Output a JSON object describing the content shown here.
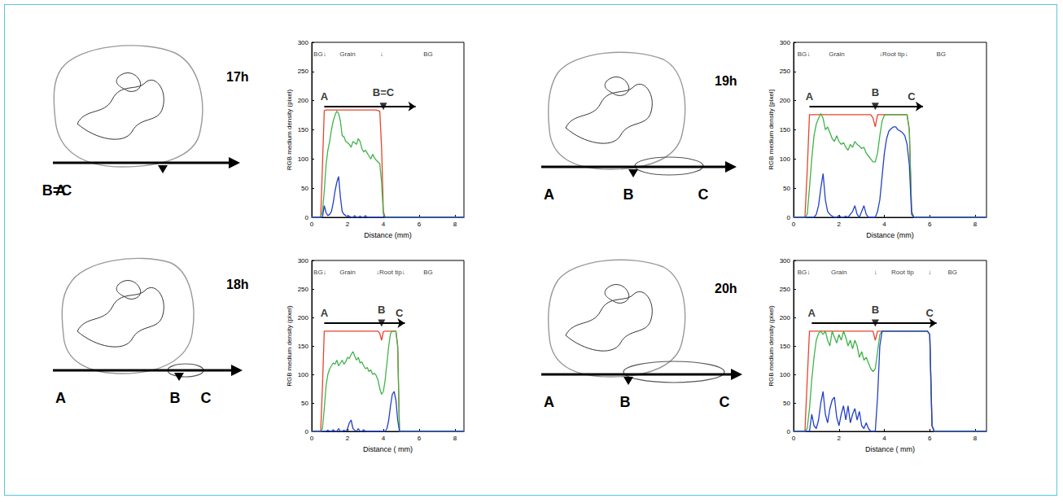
{
  "chart_data": [
    {
      "type": "line",
      "x_label": "Distance (mm)",
      "y_label": "RGB medium density (pixel)",
      "xlim": [
        0,
        8.5
      ],
      "xticks": [
        0,
        2,
        4,
        6,
        8
      ],
      "ylim": [
        0,
        300
      ],
      "yticks": [
        0,
        50,
        100,
        150,
        200,
        250,
        300
      ],
      "grid": false,
      "x": [
        0,
        0.5,
        0.6,
        0.7,
        0.8,
        0.9,
        1.0,
        1.1,
        1.2,
        1.3,
        1.4,
        1.5,
        1.6,
        1.7,
        1.8,
        1.9,
        2.0,
        2.1,
        2.2,
        2.3,
        2.4,
        2.5,
        2.6,
        2.7,
        2.8,
        2.9,
        3.0,
        3.1,
        3.2,
        3.3,
        3.4,
        3.5,
        3.6,
        3.7,
        3.8,
        3.9,
        4.0,
        4.1,
        8.5
      ],
      "series": [
        {
          "color": "#e8432d",
          "values": [
            0,
            0,
            90,
            183,
            184,
            184,
            184,
            184,
            184,
            184,
            184,
            184,
            184,
            184,
            184,
            184,
            184,
            184,
            184,
            184,
            184,
            184,
            184,
            184,
            184,
            184,
            184,
            184,
            184,
            184,
            184,
            184,
            184,
            183,
            182,
            120,
            10,
            0,
            0
          ]
        },
        {
          "color": "#3fb449",
          "values": [
            0,
            0,
            10,
            45,
            90,
            115,
            130,
            150,
            165,
            175,
            182,
            178,
            165,
            140,
            138,
            130,
            128,
            125,
            120,
            130,
            128,
            125,
            135,
            130,
            118,
            112,
            115,
            110,
            105,
            100,
            108,
            102,
            98,
            95,
            92,
            60,
            5,
            0,
            0
          ]
        },
        {
          "color": "#2340c8",
          "values": [
            0,
            0,
            0,
            20,
            8,
            3,
            5,
            10,
            25,
            45,
            60,
            70,
            35,
            10,
            5,
            3,
            0,
            2,
            0,
            0,
            3,
            0,
            0,
            2,
            0,
            0,
            3,
            0,
            0,
            0,
            0,
            0,
            0,
            0,
            0,
            0,
            0,
            0,
            0
          ]
        }
      ],
      "annotations": [
        {
          "text": "BG↓",
          "x": 0.45,
          "y": 280
        },
        {
          "text": "Grain",
          "x": 2.0,
          "y": 280
        },
        {
          "text": "↓",
          "x": 3.9,
          "y": 280
        },
        {
          "text": "BG",
          "x": 6.5,
          "y": 280
        }
      ],
      "arrow": {
        "y": 190,
        "end": 5.8,
        "points": [
          {
            "label": "A",
            "x": 0.7
          },
          {
            "label": "B=C",
            "x": 4.0,
            "marker": "triangle"
          }
        ]
      }
    },
    {
      "type": "line",
      "x_label": "Distance ( mm)",
      "y_label": "RGB medium density (pixel)",
      "xlim": [
        0,
        8.5
      ],
      "xticks": [
        0,
        2,
        4,
        6,
        8
      ],
      "ylim": [
        0,
        300
      ],
      "yticks": [
        0,
        50,
        100,
        150,
        200,
        250,
        300
      ],
      "grid": false,
      "x": [
        0,
        0.5,
        0.6,
        0.7,
        0.8,
        0.9,
        1.0,
        1.1,
        1.2,
        1.3,
        1.4,
        1.5,
        1.6,
        1.7,
        1.8,
        1.9,
        2.0,
        2.1,
        2.2,
        2.3,
        2.4,
        2.5,
        2.6,
        2.7,
        2.8,
        2.9,
        3.0,
        3.1,
        3.2,
        3.3,
        3.4,
        3.5,
        3.6,
        3.7,
        3.8,
        3.9,
        4.0,
        4.1,
        4.2,
        4.3,
        4.4,
        4.5,
        4.6,
        4.7,
        4.8,
        4.9,
        8.5
      ],
      "series": [
        {
          "color": "#e8432d",
          "values": [
            0,
            0,
            80,
            176,
            176,
            176,
            176,
            176,
            176,
            176,
            176,
            176,
            176,
            176,
            176,
            176,
            176,
            176,
            176,
            176,
            176,
            176,
            176,
            176,
            176,
            176,
            176,
            176,
            176,
            176,
            176,
            176,
            176,
            176,
            172,
            160,
            175,
            176,
            176,
            176,
            176,
            176,
            176,
            176,
            150,
            0,
            0
          ]
        },
        {
          "color": "#3fb449",
          "values": [
            0,
            0,
            5,
            40,
            80,
            100,
            110,
            115,
            120,
            118,
            125,
            115,
            120,
            125,
            118,
            122,
            130,
            128,
            135,
            140,
            132,
            125,
            130,
            120,
            122,
            115,
            110,
            112,
            105,
            108,
            100,
            102,
            98,
            90,
            75,
            65,
            70,
            90,
            120,
            150,
            172,
            176,
            176,
            176,
            150,
            0,
            0
          ]
        },
        {
          "color": "#2340c8",
          "values": [
            0,
            0,
            0,
            0,
            0,
            2,
            0,
            0,
            3,
            0,
            0,
            5,
            0,
            0,
            2,
            0,
            5,
            15,
            20,
            5,
            2,
            0,
            5,
            0,
            0,
            3,
            0,
            0,
            0,
            0,
            0,
            0,
            0,
            0,
            0,
            0,
            0,
            0,
            5,
            20,
            45,
            65,
            70,
            55,
            20,
            0,
            0
          ]
        }
      ],
      "annotations": [
        {
          "text": "BG↓",
          "x": 0.45,
          "y": 280
        },
        {
          "text": "Grain",
          "x": 2.0,
          "y": 280
        },
        {
          "text": "↓Root tip↓",
          "x": 4.4,
          "y": 280
        },
        {
          "text": "BG",
          "x": 6.5,
          "y": 280
        }
      ],
      "arrow": {
        "y": 190,
        "end": 5.2,
        "points": [
          {
            "label": "A",
            "x": 0.7
          },
          {
            "label": "B",
            "x": 3.9,
            "marker": "triangle"
          },
          {
            "label": "C",
            "x": 4.9
          }
        ]
      }
    },
    {
      "type": "line",
      "x_label": "Distance (mm)",
      "y_label": "RGB medium density [pixel]",
      "xlim": [
        0,
        8.5
      ],
      "xticks": [
        0,
        2,
        4,
        6,
        8
      ],
      "ylim": [
        0,
        300
      ],
      "yticks": [
        0,
        50,
        100,
        150,
        200,
        250,
        300
      ],
      "grid": false,
      "x": [
        0,
        0.5,
        0.6,
        0.7,
        0.8,
        0.9,
        1.0,
        1.1,
        1.2,
        1.3,
        1.4,
        1.5,
        1.6,
        1.7,
        1.8,
        1.9,
        2.0,
        2.1,
        2.2,
        2.3,
        2.4,
        2.5,
        2.6,
        2.7,
        2.8,
        2.9,
        3.0,
        3.1,
        3.2,
        3.3,
        3.4,
        3.5,
        3.6,
        3.7,
        3.8,
        3.9,
        4.0,
        4.1,
        4.2,
        4.3,
        4.4,
        4.5,
        4.6,
        4.7,
        4.8,
        4.9,
        5.0,
        5.1,
        5.2,
        5.3,
        8.5
      ],
      "series": [
        {
          "color": "#e8432d",
          "values": [
            0,
            0,
            80,
            176,
            176,
            176,
            176,
            176,
            176,
            176,
            176,
            176,
            176,
            176,
            176,
            176,
            176,
            176,
            176,
            176,
            176,
            176,
            176,
            176,
            176,
            176,
            176,
            176,
            176,
            176,
            176,
            170,
            155,
            176,
            176,
            176,
            176,
            176,
            176,
            176,
            176,
            176,
            176,
            176,
            176,
            176,
            176,
            150,
            10,
            0,
            0
          ]
        },
        {
          "color": "#3fb449",
          "values": [
            0,
            0,
            5,
            50,
            100,
            140,
            160,
            170,
            178,
            170,
            150,
            155,
            145,
            135,
            130,
            140,
            130,
            125,
            128,
            120,
            115,
            125,
            120,
            130,
            125,
            122,
            118,
            120,
            110,
            105,
            100,
            95,
            95,
            110,
            140,
            165,
            175,
            176,
            176,
            176,
            176,
            176,
            176,
            176,
            176,
            176,
            176,
            150,
            10,
            0,
            0
          ]
        },
        {
          "color": "#2340c8",
          "values": [
            0,
            0,
            0,
            0,
            0,
            0,
            5,
            20,
            50,
            75,
            30,
            10,
            5,
            2,
            0,
            0,
            3,
            0,
            0,
            2,
            0,
            5,
            10,
            20,
            5,
            0,
            10,
            20,
            5,
            0,
            0,
            0,
            0,
            10,
            30,
            70,
            110,
            135,
            148,
            152,
            155,
            155,
            150,
            148,
            145,
            140,
            125,
            90,
            5,
            0,
            0
          ]
        }
      ],
      "annotations": [
        {
          "text": "BG↓",
          "x": 0.45,
          "y": 280
        },
        {
          "text": "Grain",
          "x": 1.9,
          "y": 280
        },
        {
          "text": "↓Root tip↓",
          "x": 4.4,
          "y": 280
        },
        {
          "text": "BG",
          "x": 6.5,
          "y": 280
        }
      ],
      "arrow": {
        "y": 190,
        "end": 5.7,
        "points": [
          {
            "label": "A",
            "x": 0.7
          },
          {
            "label": "B",
            "x": 3.6,
            "marker": "triangle"
          },
          {
            "label": "C",
            "x": 5.2
          }
        ]
      }
    },
    {
      "type": "line",
      "x_label": "Distance ( mm)",
      "y_label": "RGB medium density (pixel)",
      "xlim": [
        0,
        8.5
      ],
      "xticks": [
        0,
        2,
        4,
        6,
        8
      ],
      "ylim": [
        0,
        300
      ],
      "yticks": [
        0,
        50,
        100,
        150,
        200,
        250,
        300
      ],
      "grid": false,
      "x": [
        0,
        0.5,
        0.6,
        0.7,
        0.8,
        0.9,
        1.0,
        1.1,
        1.2,
        1.3,
        1.4,
        1.5,
        1.6,
        1.7,
        1.8,
        1.9,
        2.0,
        2.1,
        2.2,
        2.3,
        2.4,
        2.5,
        2.6,
        2.7,
        2.8,
        2.9,
        3.0,
        3.1,
        3.2,
        3.3,
        3.4,
        3.5,
        3.6,
        3.7,
        3.8,
        3.9,
        4.0,
        4.1,
        4.2,
        4.3,
        4.4,
        4.5,
        4.6,
        4.7,
        4.8,
        4.9,
        5.0,
        5.1,
        5.2,
        5.3,
        5.4,
        5.5,
        5.6,
        5.7,
        5.8,
        5.9,
        6.0,
        6.1,
        6.2,
        8.5
      ],
      "series": [
        {
          "color": "#e8432d",
          "values": [
            0,
            0,
            90,
            176,
            176,
            176,
            176,
            176,
            176,
            176,
            176,
            176,
            176,
            176,
            176,
            176,
            176,
            176,
            176,
            176,
            176,
            176,
            176,
            176,
            176,
            176,
            176,
            176,
            176,
            176,
            176,
            176,
            160,
            176,
            176,
            176,
            176,
            176,
            176,
            176,
            176,
            176,
            176,
            176,
            176,
            176,
            176,
            176,
            176,
            176,
            176,
            176,
            176,
            176,
            176,
            176,
            170,
            10,
            0,
            0
          ]
        },
        {
          "color": "#3fb449",
          "values": [
            0,
            0,
            5,
            40,
            90,
            130,
            160,
            172,
            176,
            170,
            176,
            160,
            150,
            176,
            165,
            155,
            170,
            160,
            176,
            165,
            150,
            160,
            145,
            160,
            150,
            130,
            140,
            125,
            130,
            120,
            110,
            105,
            110,
            140,
            170,
            176,
            176,
            176,
            176,
            176,
            176,
            176,
            176,
            176,
            176,
            176,
            176,
            176,
            176,
            176,
            176,
            176,
            176,
            176,
            176,
            176,
            170,
            10,
            0,
            0
          ]
        },
        {
          "color": "#2340c8",
          "values": [
            0,
            0,
            0,
            0,
            30,
            10,
            5,
            20,
            50,
            70,
            30,
            15,
            40,
            55,
            60,
            25,
            10,
            30,
            45,
            20,
            45,
            15,
            30,
            40,
            20,
            35,
            10,
            5,
            15,
            5,
            0,
            0,
            0,
            60,
            150,
            176,
            176,
            176,
            176,
            176,
            176,
            176,
            176,
            176,
            176,
            176,
            176,
            176,
            176,
            176,
            176,
            176,
            176,
            176,
            176,
            176,
            170,
            10,
            0,
            0
          ]
        }
      ],
      "annotations": [
        {
          "text": "BG↓",
          "x": 0.45,
          "y": 280
        },
        {
          "text": "Grain",
          "x": 2.0,
          "y": 280
        },
        {
          "text": "↓",
          "x": 3.6,
          "y": 280
        },
        {
          "text": "Root tip",
          "x": 4.8,
          "y": 280
        },
        {
          "text": "↓",
          "x": 6.0,
          "y": 280
        },
        {
          "text": "BG",
          "x": 7.0,
          "y": 280
        }
      ],
      "arrow": {
        "y": 190,
        "end": 6.3,
        "points": [
          {
            "label": "A",
            "x": 0.8
          },
          {
            "label": "B",
            "x": 3.6,
            "marker": "triangle"
          },
          {
            "label": "C",
            "x": 6.0
          }
        ]
      }
    }
  ],
  "sketches": [
    {
      "time": "17h",
      "labels": [
        "A",
        "B=C"
      ]
    },
    {
      "time": "18h",
      "labels": [
        "A",
        "B",
        "C"
      ]
    },
    {
      "time": "19h",
      "labels": [
        "A",
        "B",
        "C"
      ]
    },
    {
      "time": "20h",
      "labels": [
        "A",
        "B",
        "C"
      ]
    }
  ]
}
